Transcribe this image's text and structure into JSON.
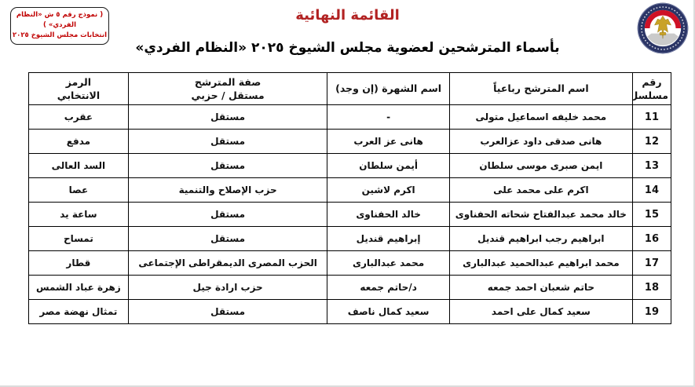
{
  "page": {
    "title": "القائمة النهائية",
    "subtitle": "بأسماء المترشحين لعضوية مجلس الشيوخ ٢٠٢٥ «النظام الفردي»",
    "form_box": {
      "line1": "( نموذج رقم ٥ ش «النظام الفردي» )",
      "line2": "انتخابات مجلس الشيوخ ٢٠٢٥"
    },
    "logo": {
      "icon": "national-election-authority-emblem"
    },
    "colors": {
      "title_red": "#B22222",
      "box_red": "#C00000",
      "table_border": "#000000",
      "emblem_ring": "#2B3566",
      "emblem_red": "#CE1126",
      "emblem_gold": "#C9A227"
    }
  },
  "table": {
    "headers": [
      "رقم\nمسلسل",
      "اسم المترشح رباعياً",
      "اسم الشهرة (إن وجد)",
      "صفة المترشح\nمستقل / حزبي",
      "الرمز\nالانتخابي"
    ],
    "rows": [
      {
        "serial": "11",
        "name": "محمد خليفه اسماعيل متولى",
        "known_as": "-",
        "capacity": "مستقل",
        "symbol": "عقرب"
      },
      {
        "serial": "12",
        "name": "هانى صدقى داود عزالعرب",
        "known_as": "هانى عز العرب",
        "capacity": "مستقل",
        "symbol": "مدفع"
      },
      {
        "serial": "13",
        "name": "ايمن صبرى موسى سلطان",
        "known_as": "أيمن سلطان",
        "capacity": "مستقل",
        "symbol": "السد العالى"
      },
      {
        "serial": "14",
        "name": "اكرم على محمد على",
        "known_as": "اكرم لاشين",
        "capacity": "حزب الإصلاح والتنمية",
        "symbol": "عصا"
      },
      {
        "serial": "15",
        "name": "خالد محمد عبدالفتاح شحاته الحفناوى",
        "known_as": "خالد الحفناوى",
        "capacity": "مستقل",
        "symbol": "ساعة يد"
      },
      {
        "serial": "16",
        "name": "ابراهيم رجب ابراهيم قنديل",
        "known_as": "إبراهيم قنديل",
        "capacity": "مستقل",
        "symbol": "تمساح"
      },
      {
        "serial": "17",
        "name": "محمد ابراهيم عبدالحميد عبدالبارى",
        "known_as": "محمد عبدالبارى",
        "capacity": "الحزب المصرى الديمقراطى الإجتماعى",
        "symbol": "قطار"
      },
      {
        "serial": "18",
        "name": "حاتم شعبان احمد جمعه",
        "known_as": "د/حاتم جمعه",
        "capacity": "حزب ارادة جيل",
        "symbol": "زهرة عباد الشمس"
      },
      {
        "serial": "19",
        "name": "سعيد كمال على احمد",
        "known_as": "سعيد كمال ناصف",
        "capacity": "مستقل",
        "symbol": "تمثال نهضة مصر"
      }
    ]
  }
}
